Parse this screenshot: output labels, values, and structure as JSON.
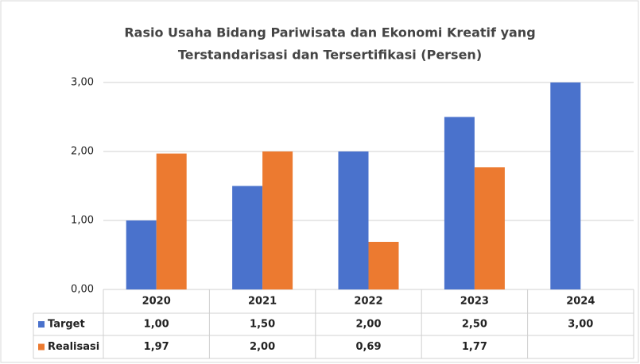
{
  "chart_data": {
    "type": "bar",
    "title": [
      "Rasio Usaha Bidang Pariwisata dan Ekonomi Kreatif yang",
      "Terstandarisasi dan Tersertifikasi (Persen)"
    ],
    "categories": [
      "2020",
      "2021",
      "2022",
      "2023",
      "2024"
    ],
    "series": [
      {
        "name": "Target",
        "color": "#4a72cc",
        "values": [
          1,
          1.5,
          2,
          2.5,
          3
        ],
        "value_labels": [
          "1,00",
          "1,50",
          "2,00",
          "2,50",
          "3,00"
        ]
      },
      {
        "name": "Realisasi",
        "color": "#ec7a30",
        "values": [
          1.97,
          2,
          0.69,
          1.77,
          null
        ],
        "value_labels": [
          "1,97",
          "2,00",
          "0,69",
          "1,77",
          null
        ]
      }
    ],
    "ylim": [
      0,
      3
    ],
    "yticks": [
      {
        "value": 0,
        "label": "0,00"
      },
      {
        "value": 1,
        "label": "1,00"
      },
      {
        "value": 2,
        "label": "2,00"
      },
      {
        "value": 3,
        "label": "3,00"
      }
    ],
    "grid": true,
    "legend": "table"
  }
}
